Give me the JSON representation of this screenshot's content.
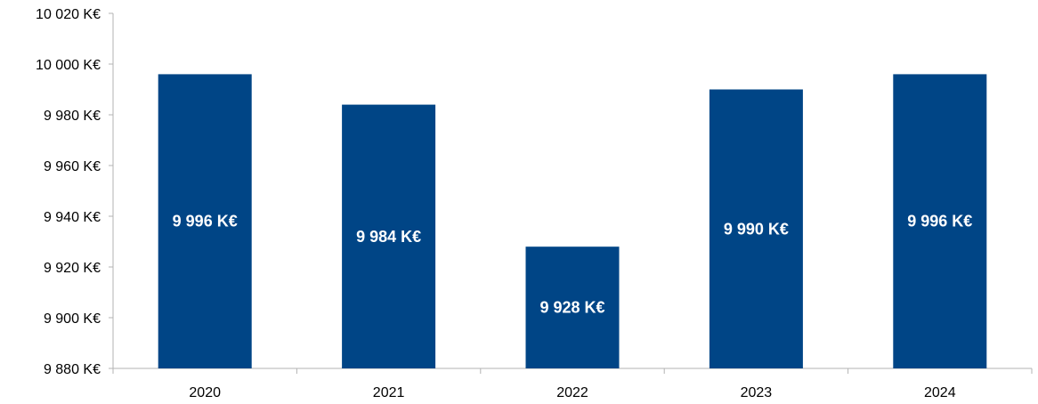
{
  "chart_data": {
    "type": "bar",
    "title": "",
    "xlabel": "",
    "ylabel": "",
    "categories": [
      "2020",
      "2021",
      "2022",
      "2023",
      "2024"
    ],
    "values": [
      9996,
      9984,
      9928,
      9990,
      9996
    ],
    "data_labels": [
      "9 996  K€",
      "9 984  K€",
      "9 928  K€",
      "9 990  K€",
      "9 996  K€"
    ],
    "ylim": [
      9880,
      10020
    ],
    "y_ticks": [
      9880,
      9900,
      9920,
      9940,
      9960,
      9980,
      10000,
      10020
    ],
    "y_tick_labels": [
      "9 880  K€",
      "9 900  K€",
      "9 920  K€",
      "9 940  K€",
      "9 960  K€",
      "9 980  K€",
      "10 000  K€",
      "10 020  K€"
    ],
    "grid": false,
    "legend": "none",
    "bar_color": "#004586",
    "label_color": "#ffffff",
    "axis_color": "#b3b3b3"
  }
}
